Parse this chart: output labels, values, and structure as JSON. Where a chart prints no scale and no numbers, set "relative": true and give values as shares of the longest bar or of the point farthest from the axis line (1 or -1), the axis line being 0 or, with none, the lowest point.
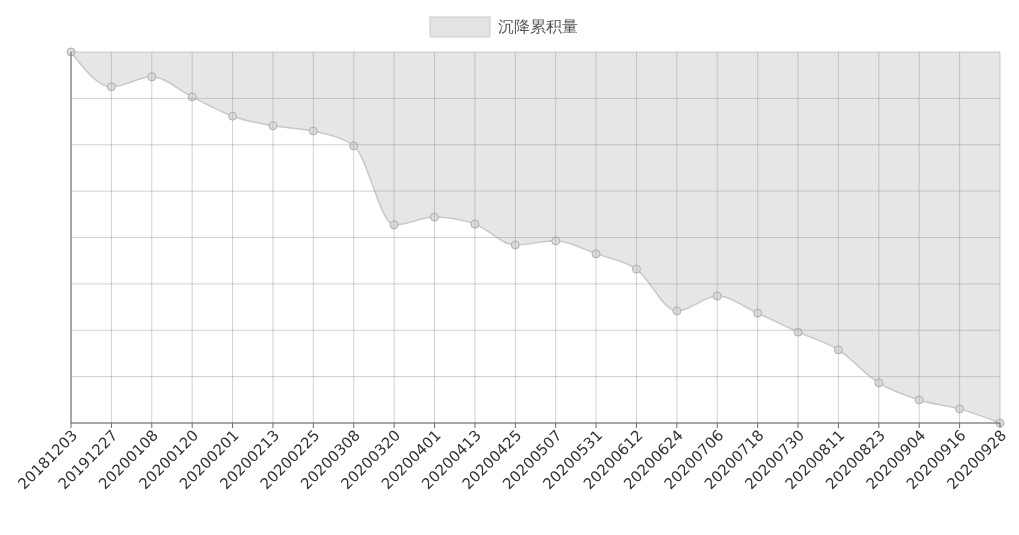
{
  "chart_data": {
    "type": "area",
    "relative": true,
    "categories": [
      "20181203",
      "20191227",
      "20200108",
      "20200120",
      "20200201",
      "20200213",
      "20200225",
      "20200308",
      "20200320",
      "20200401",
      "20200413",
      "20200425",
      "20200507",
      "20200531",
      "20200612",
      "20200624",
      "20200706",
      "20200718",
      "20200730",
      "20200811",
      "20200823",
      "20200904",
      "20200916",
      "20200928"
    ],
    "series": [
      {
        "name": "沉降累积量",
        "color": "#e3e3e3",
        "values": [
          0,
          -0.094,
          -0.067,
          -0.121,
          -0.173,
          -0.199,
          -0.213,
          -0.253,
          -0.466,
          -0.445,
          -0.464,
          -0.52,
          -0.509,
          -0.544,
          -0.585,
          -0.698,
          -0.658,
          -0.704,
          -0.755,
          -0.803,
          -0.892,
          -0.938,
          -0.962,
          -1
        ]
      }
    ],
    "grid": true,
    "legend": "top",
    "marker": "circle",
    "line_style": "solid"
  }
}
